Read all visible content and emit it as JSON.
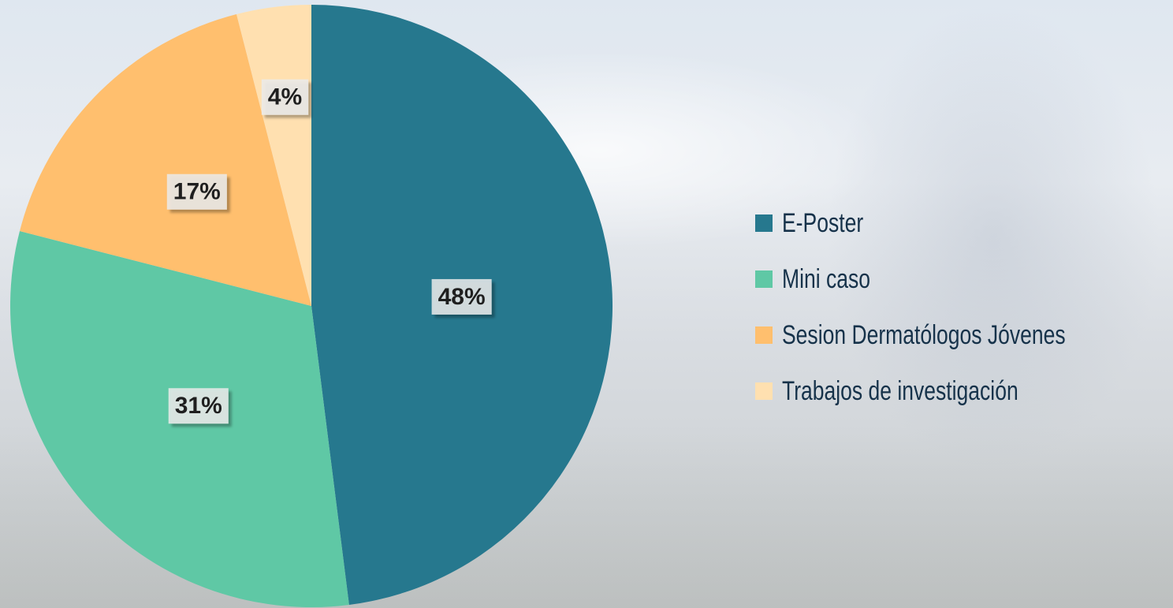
{
  "chart_data": {
    "type": "pie",
    "categories": [
      "E-Poster",
      "Mini caso",
      "Sesion Dermatólogos Jóvenes",
      "Trabajos de investigación"
    ],
    "values": [
      48,
      31,
      17,
      4
    ],
    "value_labels": [
      "48%",
      "31%",
      "17%",
      "4%"
    ],
    "colors": [
      "#26788e",
      "#5fc8a5",
      "#ffbf6e",
      "#ffe0b0"
    ],
    "legend": "right"
  }
}
